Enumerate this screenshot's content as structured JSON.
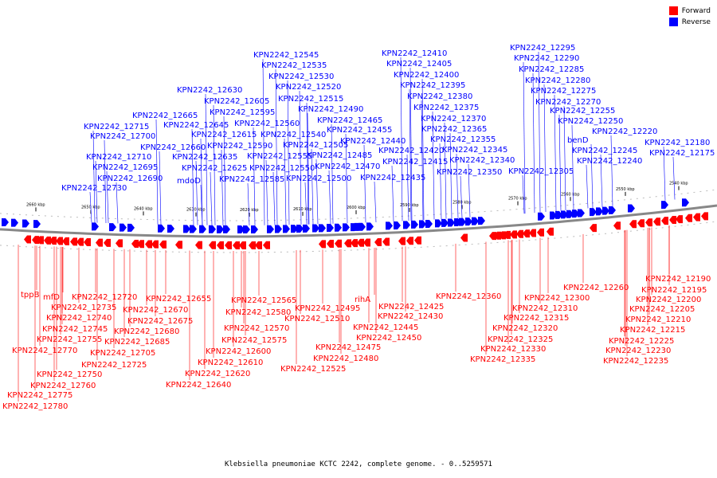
{
  "legend": {
    "forward_label": "Forward",
    "reverse_label": "Reverse",
    "forward_color": "#ff0000",
    "reverse_color": "#0000ff"
  },
  "caption": "Klebsiella pneumoniae KCTC 2242, complete genome. - 0..5259571",
  "scale_ticks": [
    "2660 kbp",
    "2650 kbp",
    "2640 kbp",
    "2630 kbp",
    "2620 kbp",
    "2610 kbp",
    "2600 kbp",
    "2590 kbp",
    "2580 kbp",
    "2570 kbp",
    "2560 kbp",
    "2550 kbp",
    "2540 kbp"
  ],
  "reverse_labels": [
    "KPN2242_12545",
    "KPN2242_12535",
    "KPN2242_12530",
    "KPN2242_12520",
    "KPN2242_12515",
    "KPN2242_12490",
    "KPN2242_12465",
    "KPN2242_12455",
    "KPN2242_12440",
    "KPN2242_12420",
    "KPN2242_12415",
    "KPN2242_12435",
    "KPN2242_12410",
    "KPN2242_12405",
    "KPN2242_12400",
    "KPN2242_12395",
    "KPN2242_12380",
    "KPN2242_12375",
    "KPN2242_12370",
    "KPN2242_12365",
    "KPN2242_12355",
    "KPN2242_12345",
    "KPN2242_12340",
    "KPN2242_12350",
    "KPN2242_12295",
    "KPN2242_12290",
    "KPN2242_12285",
    "KPN2242_12280",
    "KPN2242_12275",
    "KPN2242_12270",
    "KPN2242_12255",
    "KPN2242_12250",
    "KPN2242_12220",
    "benD",
    "KPN2242_12245",
    "KPN2242_12240",
    "KPN2242_12305",
    "KPN2242_12180",
    "KPN2242_12175",
    "KPN2242_12630",
    "KPN2242_12605",
    "KPN2242_12595",
    "KPN2242_12560",
    "KPN2242_12540",
    "KPN2242_12505",
    "KPN2242_12485",
    "KPN2242_12470",
    "KPN2242_12500",
    "KPN2242_12665",
    "KPN2242_12645",
    "KPN2242_12615",
    "KPN2242_12590",
    "KPN2242_12555",
    "KPN2242_12550",
    "KPN2242_12585",
    "KPN2242_12715",
    "KPN2242_12700",
    "KPN2242_12660",
    "KPN2242_12635",
    "KPN2242_12625",
    "KPN2242_12710",
    "KPN2242_12695",
    "KPN2242_12690",
    "mdoD",
    "KPN2242_12730"
  ],
  "forward_labels": [
    "tppB",
    "mfD",
    "KPN2242_12720",
    "KPN2242_12735",
    "KPN2242_12740",
    "KPN2242_12745",
    "KPN2242_12755",
    "KPN2242_12770",
    "KPN2242_12725",
    "KPN2242_12750",
    "KPN2242_12760",
    "KPN2242_12775",
    "KPN2242_12780",
    "KPN2242_12655",
    "KPN2242_12670",
    "KPN2242_12675",
    "KPN2242_12680",
    "KPN2242_12685",
    "KPN2242_12705",
    "KPN2242_12565",
    "KPN2242_12580",
    "KPN2242_12570",
    "KPN2242_12575",
    "KPN2242_12600",
    "KPN2242_12610",
    "KPN2242_12620",
    "KPN2242_12640",
    "KPN2242_12495",
    "KPN2242_12510",
    "rihA",
    "KPN2242_12425",
    "KPN2242_12430",
    "KPN2242_12445",
    "KPN2242_12450",
    "KPN2242_12475",
    "KPN2242_12480",
    "KPN2242_12525",
    "KPN2242_12360",
    "KPN2242_12300",
    "KPN2242_12310",
    "KPN2242_12315",
    "KPN2242_12320",
    "KPN2242_12325",
    "KPN2242_12330",
    "KPN2242_12335",
    "KPN2242_12260",
    "KPN2242_12190",
    "KPN2242_12195",
    "KPN2242_12200",
    "KPN2242_12205",
    "KPN2242_12210",
    "KPN2242_12215",
    "KPN2242_12225",
    "KPN2242_12230",
    "KPN2242_12235"
  ]
}
